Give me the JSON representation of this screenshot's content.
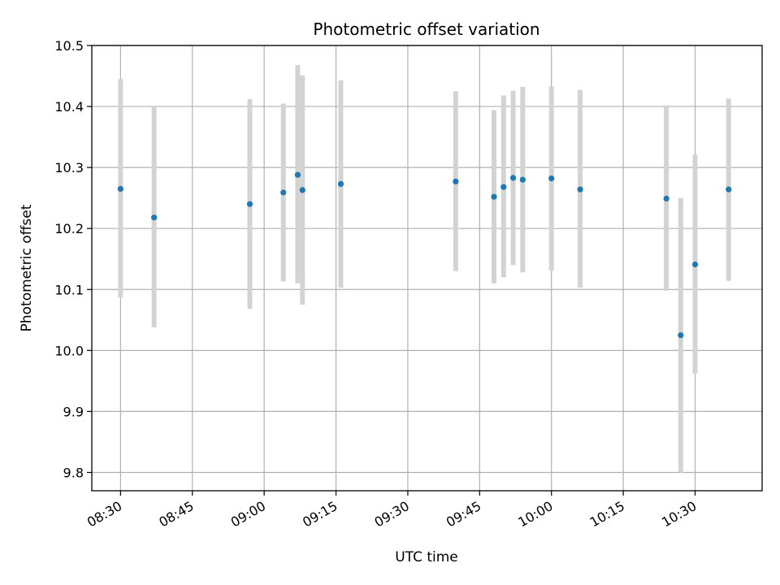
{
  "chart_data": {
    "type": "scatter",
    "title": "Photometric offset variation",
    "xlabel": "UTC time",
    "ylabel": "Photometric offset",
    "xlim": [
      "08:24",
      "10:44"
    ],
    "ylim": [
      9.77,
      10.5
    ],
    "x_ticks": [
      "08:30",
      "08:45",
      "09:00",
      "09:15",
      "09:30",
      "09:45",
      "10:00",
      "10:15",
      "10:30"
    ],
    "y_ticks": [
      9.8,
      9.9,
      10.0,
      10.1,
      10.2,
      10.3,
      10.4,
      10.5
    ],
    "grid": true,
    "colors": {
      "point": "#1f77b4",
      "errorbar": "#d3d3d3",
      "grid": "#b0b0b0"
    },
    "series": [
      {
        "points": [
          {
            "x": "08:30",
            "y": 10.265,
            "low": 10.087,
            "high": 10.445
          },
          {
            "x": "08:37",
            "y": 10.218,
            "low": 10.038,
            "high": 10.4
          },
          {
            "x": "08:57",
            "y": 10.24,
            "low": 10.068,
            "high": 10.412
          },
          {
            "x": "09:04",
            "y": 10.259,
            "low": 10.113,
            "high": 10.405
          },
          {
            "x": "09:07",
            "y": 10.288,
            "low": 10.11,
            "high": 10.468
          },
          {
            "x": "09:08",
            "y": 10.263,
            "low": 10.075,
            "high": 10.451
          },
          {
            "x": "09:16",
            "y": 10.273,
            "low": 10.103,
            "high": 10.443
          },
          {
            "x": "09:40",
            "y": 10.277,
            "low": 10.13,
            "high": 10.425
          },
          {
            "x": "09:48",
            "y": 10.252,
            "low": 10.11,
            "high": 10.394
          },
          {
            "x": "09:50",
            "y": 10.268,
            "low": 10.12,
            "high": 10.418
          },
          {
            "x": "09:52",
            "y": 10.283,
            "low": 10.14,
            "high": 10.426
          },
          {
            "x": "09:54",
            "y": 10.28,
            "low": 10.128,
            "high": 10.432
          },
          {
            "x": "10:00",
            "y": 10.282,
            "low": 10.131,
            "high": 10.433
          },
          {
            "x": "10:06",
            "y": 10.264,
            "low": 10.103,
            "high": 10.427
          },
          {
            "x": "10:24",
            "y": 10.249,
            "low": 10.098,
            "high": 10.402
          },
          {
            "x": "10:27",
            "y": 10.025,
            "low": 9.8,
            "high": 10.25
          },
          {
            "x": "10:30",
            "y": 10.141,
            "low": 9.962,
            "high": 10.321
          },
          {
            "x": "10:37",
            "y": 10.264,
            "low": 10.114,
            "high": 10.413
          }
        ]
      }
    ]
  }
}
